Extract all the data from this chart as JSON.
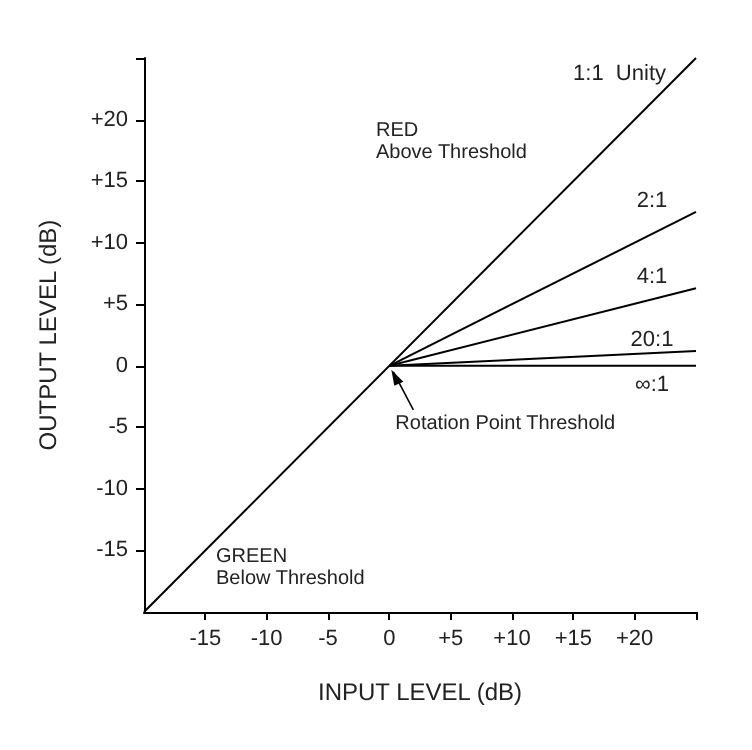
{
  "chart_data": {
    "type": "line",
    "xlabel": "INPUT LEVEL (dB)",
    "ylabel": "OUTPUT LEVEL (dB)",
    "xlim": [
      -20,
      25
    ],
    "ylim": [
      -20,
      25
    ],
    "xticks": [
      -15,
      -10,
      -5,
      0,
      {
        "value": 5,
        "label": "+5"
      },
      {
        "value": 10,
        "label": "+10"
      },
      {
        "value": 15,
        "label": "+15"
      },
      {
        "value": 20,
        "label": "+20"
      },
      {
        "value": 25,
        "label": null
      }
    ],
    "yticks": [
      -15,
      -10,
      -5,
      0,
      {
        "value": 5,
        "label": "+5"
      },
      {
        "value": 10,
        "label": "+10"
      },
      {
        "value": 15,
        "label": "+15"
      },
      {
        "value": 20,
        "label": "+20"
      },
      {
        "value": 25,
        "label": null
      }
    ],
    "series": [
      {
        "name": "1:1  Unity",
        "color": "#000000",
        "x": [
          -20,
          25
        ],
        "values": [
          -20,
          25
        ]
      },
      {
        "name": "2:1",
        "color": "#000000",
        "x": [
          0,
          25
        ],
        "values": [
          0,
          12.5
        ]
      },
      {
        "name": "4:1",
        "color": "#000000",
        "x": [
          0,
          25
        ],
        "values": [
          0,
          6.3
        ]
      },
      {
        "name": "20:1",
        "color": "#000000",
        "x": [
          0,
          25
        ],
        "values": [
          0,
          1.2
        ]
      },
      {
        "name": "∞:1",
        "color": "#000000",
        "x": [
          0,
          25
        ],
        "values": [
          0,
          0
        ]
      }
    ],
    "annotations": [
      "RED\nAbove Threshold",
      "GREEN\nBelow Threshold",
      {
        "text": "Rotation Point Threshold",
        "x": 0,
        "y": 0
      }
    ],
    "grid": false,
    "legend": false,
    "marker": "none",
    "line_style": "solid"
  }
}
